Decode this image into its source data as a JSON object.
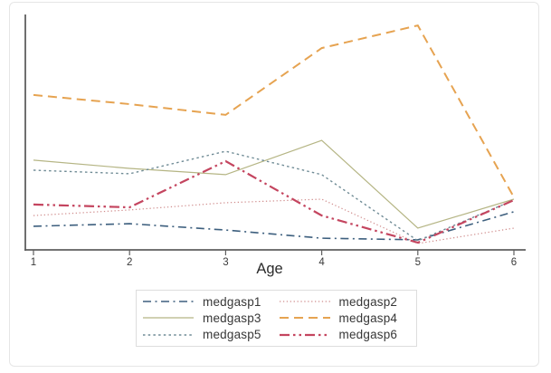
{
  "figure": {
    "x_axis_title": "Age",
    "x_tick_labels": [
      "1",
      "2",
      "3",
      "4",
      "5",
      "6"
    ],
    "axis_color": "#5f5f5f",
    "border_color": "#e6e6e6",
    "legend_border_color": "#dddddd",
    "background_color": "#ffffff"
  },
  "chart_data": {
    "type": "line",
    "title": "",
    "xlabel": "Age",
    "ylabel": "",
    "x": [
      1,
      2,
      3,
      4,
      5,
      6
    ],
    "xlim": [
      1,
      6
    ],
    "ylim": [
      0,
      100
    ],
    "y_axis_labeled": false,
    "grid": false,
    "legend_position": "bottom-center-boxed",
    "series": [
      {
        "name": "medgasp1",
        "color": "#3d5f7e",
        "style": "dash-dot",
        "width": 1.6,
        "values": [
          10.1,
          11.2,
          8.5,
          5.0,
          4.3,
          16.3
        ]
      },
      {
        "name": "medgasp2",
        "color": "#d08d8d",
        "style": "dotted-fine",
        "width": 1.2,
        "values": [
          14.7,
          17.1,
          20.2,
          21.7,
          2.7,
          9.3
        ]
      },
      {
        "name": "medgasp3",
        "color": "#b5b584",
        "style": "solid",
        "width": 1.2,
        "values": [
          38.4,
          34.9,
          32.2,
          46.9,
          9.3,
          21.7
        ]
      },
      {
        "name": "medgasp4",
        "color": "#e6a351",
        "style": "dashed",
        "width": 2.0,
        "values": [
          66.3,
          62.4,
          57.8,
          86.4,
          96.1,
          22.5
        ]
      },
      {
        "name": "medgasp5",
        "color": "#6f8b95",
        "style": "dotted",
        "width": 1.4,
        "values": [
          34.1,
          32.6,
          42.2,
          32.2,
          3.9,
          21.3
        ]
      },
      {
        "name": "medgasp6",
        "color": "#c4455f",
        "style": "dash-dot-dot",
        "width": 2.2,
        "values": [
          19.4,
          18.2,
          38.0,
          14.7,
          3.1,
          21.3
        ]
      }
    ]
  }
}
